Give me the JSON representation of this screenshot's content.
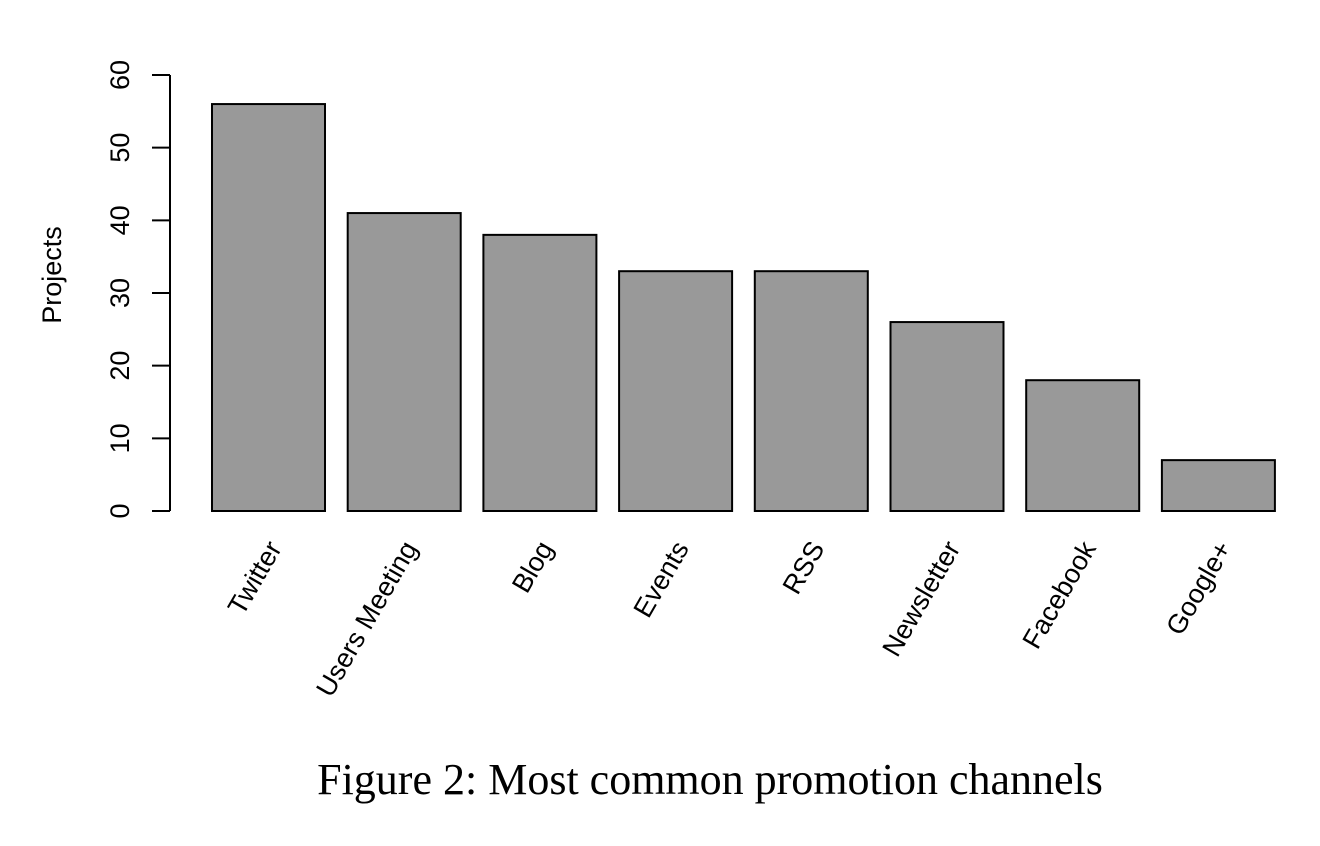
{
  "caption": "Figure 2: Most common promotion channels",
  "chart_data": {
    "type": "bar",
    "categories": [
      "Twitter",
      "Users Meeting",
      "Blog",
      "Events",
      "RSS",
      "Newsletter",
      "Facebook",
      "Google+"
    ],
    "values": [
      56,
      41,
      38,
      33,
      33,
      26,
      18,
      7
    ],
    "xlabel": "",
    "ylabel": "Projects",
    "ylim": [
      0,
      60
    ],
    "yticks": [
      0,
      10,
      20,
      30,
      40,
      50,
      60
    ],
    "bar_color": "#999999",
    "edge_color": "#000000",
    "grid": false
  }
}
